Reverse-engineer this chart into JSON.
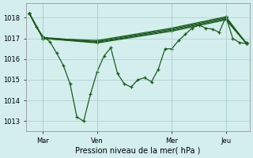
{
  "xlabel": "Pression niveau de la mer( hPa )",
  "bg_color": "#d4eeee",
  "grid_color": "#aacccc",
  "line_color": "#1a5c1a",
  "ylim": [
    1012.5,
    1018.7
  ],
  "yticks": [
    1013,
    1014,
    1015,
    1016,
    1017,
    1018
  ],
  "xlim": [
    0,
    32
  ],
  "xtick_positions": [
    2,
    10,
    21,
    29
  ],
  "xtick_labels": [
    "Mar",
    "Ven",
    "Mer",
    "Jeu"
  ],
  "main_series_x": [
    0,
    1,
    2,
    3,
    4,
    5,
    6,
    7,
    8,
    9,
    10,
    11,
    12,
    13,
    14,
    15,
    16,
    17,
    18,
    19,
    20,
    21,
    22,
    23,
    24,
    25,
    26,
    27,
    28,
    29,
    30,
    31,
    32
  ],
  "main_series_y": [
    1018.2,
    1017.55,
    1017.1,
    1016.85,
    1016.3,
    1015.7,
    1014.8,
    1013.2,
    1013.0,
    1014.3,
    1015.4,
    1016.15,
    1016.55,
    1015.3,
    1014.8,
    1014.65,
    1015.0,
    1015.1,
    1014.9,
    1015.5,
    1016.5,
    1016.5,
    1016.9,
    1017.2,
    1017.5,
    1017.65,
    1017.5,
    1017.45,
    1017.3,
    1018.05,
    1017.0,
    1016.8,
    1016.75
  ],
  "trend_series": [
    {
      "x": [
        0,
        2,
        10,
        21,
        29,
        32
      ],
      "y": [
        1018.2,
        1017.0,
        1016.9,
        1017.5,
        1018.05,
        1016.75
      ]
    },
    {
      "x": [
        0,
        2,
        10,
        21,
        29,
        32
      ],
      "y": [
        1018.2,
        1017.05,
        1016.85,
        1017.45,
        1018.0,
        1016.78
      ]
    },
    {
      "x": [
        0,
        2,
        10,
        21,
        29,
        32
      ],
      "y": [
        1018.2,
        1017.0,
        1016.82,
        1017.4,
        1017.95,
        1016.78
      ]
    },
    {
      "x": [
        0,
        2,
        10,
        21,
        29,
        32
      ],
      "y": [
        1018.2,
        1017.0,
        1016.78,
        1017.35,
        1017.9,
        1016.75
      ]
    }
  ],
  "lw": 0.9,
  "ms": 2.5,
  "mew": 0.9,
  "ylabel_fontsize": 7,
  "tick_fontsize": 6
}
